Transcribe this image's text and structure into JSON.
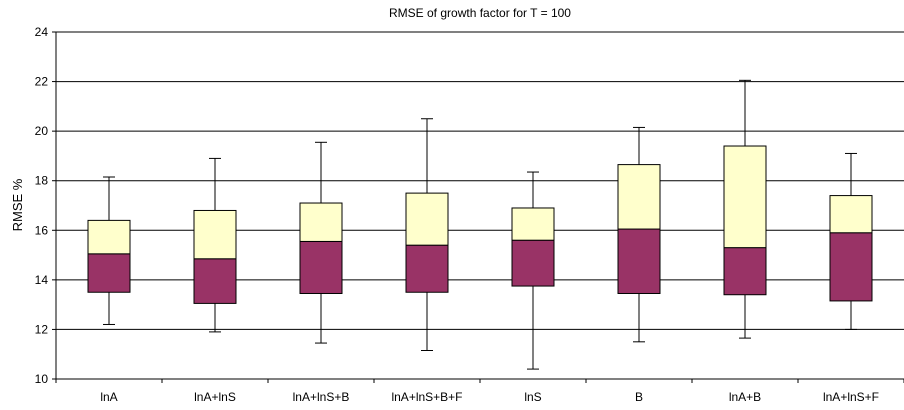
{
  "chart_data": {
    "type": "box",
    "title": "RMSE of growth factor for T = 100",
    "xlabel": "",
    "ylabel": "RMSE %",
    "ylim": [
      10,
      24
    ],
    "yticks": [
      10,
      12,
      14,
      16,
      18,
      20,
      22,
      24
    ],
    "grid": true,
    "lower_box_color": "#993366",
    "upper_box_color": "#FFFFCC",
    "categories": [
      "lnA",
      "lnA+lnS",
      "lnA+lnS+B",
      "lnA+lnS+B+F",
      "lnS",
      "B",
      "lnA+B",
      "lnA+lnS+F"
    ],
    "boxes": [
      {
        "min": 12.2,
        "q1": 13.5,
        "median": 15.05,
        "q3": 16.4,
        "max": 18.15
      },
      {
        "min": 11.9,
        "q1": 13.05,
        "median": 14.85,
        "q3": 16.8,
        "max": 18.9
      },
      {
        "min": 11.45,
        "q1": 13.45,
        "median": 15.55,
        "q3": 17.1,
        "max": 19.55
      },
      {
        "min": 11.15,
        "q1": 13.5,
        "median": 15.4,
        "q3": 17.5,
        "max": 20.5
      },
      {
        "min": 10.4,
        "q1": 13.75,
        "median": 15.6,
        "q3": 16.9,
        "max": 18.35
      },
      {
        "min": 11.5,
        "q1": 13.45,
        "median": 16.05,
        "q3": 18.65,
        "max": 20.15
      },
      {
        "min": 11.65,
        "q1": 13.4,
        "median": 15.3,
        "q3": 19.4,
        "max": 22.05
      },
      {
        "min": 12.0,
        "q1": 13.15,
        "median": 15.9,
        "q3": 17.4,
        "max": 19.1
      }
    ]
  }
}
